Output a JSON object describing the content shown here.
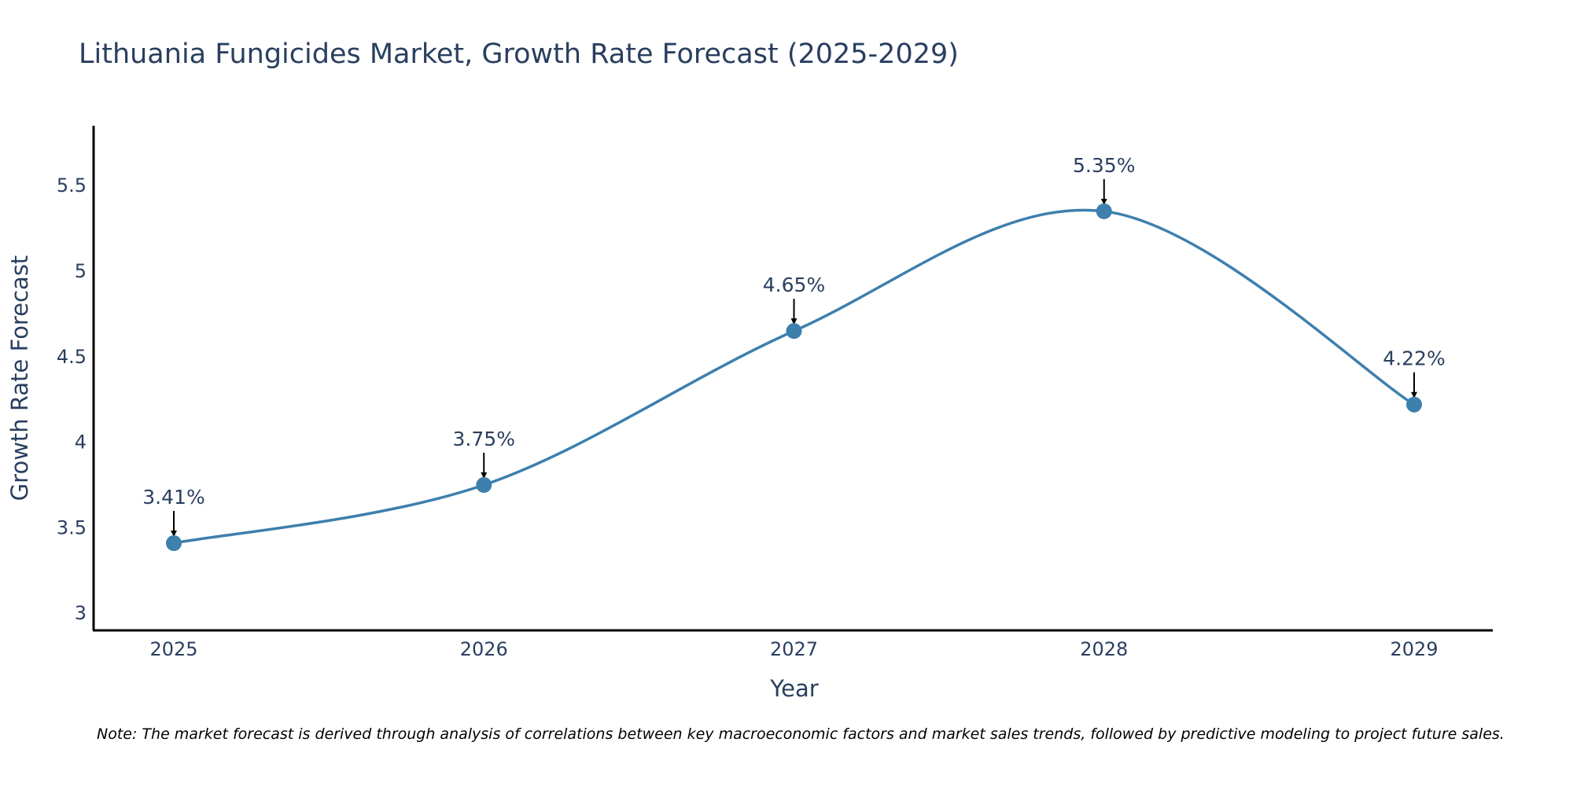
{
  "colors": {
    "series": "#3d7fad",
    "text": "#2a3f5f",
    "axis": "#000000"
  },
  "chart_data": {
    "type": "line",
    "title": "Lithuania Fungicides Market, Growth Rate Forecast (2025-2029)",
    "xlabel": "Year",
    "ylabel": "Growth Rate Forecast",
    "categories": [
      "2025",
      "2026",
      "2027",
      "2028",
      "2029"
    ],
    "series": [
      {
        "name": "Growth Rate Forecast",
        "values": [
          3.41,
          3.75,
          4.65,
          5.35,
          4.22
        ],
        "labels": [
          "3.41%",
          "3.75%",
          "4.65%",
          "5.35%",
          "4.22%"
        ]
      }
    ],
    "yticks": [
      3,
      3.5,
      4,
      4.5,
      5,
      5.5
    ],
    "ytick_labels": [
      "3",
      "3.5",
      "4",
      "4.5",
      "5",
      "5.5"
    ],
    "ylim": [
      2.9,
      5.85
    ],
    "grid": false,
    "line_shape": "spline",
    "note": "Note: The market forecast is derived through analysis of correlations between key macroeconomic factors and market sales trends, followed by predictive modeling to project future sales."
  }
}
